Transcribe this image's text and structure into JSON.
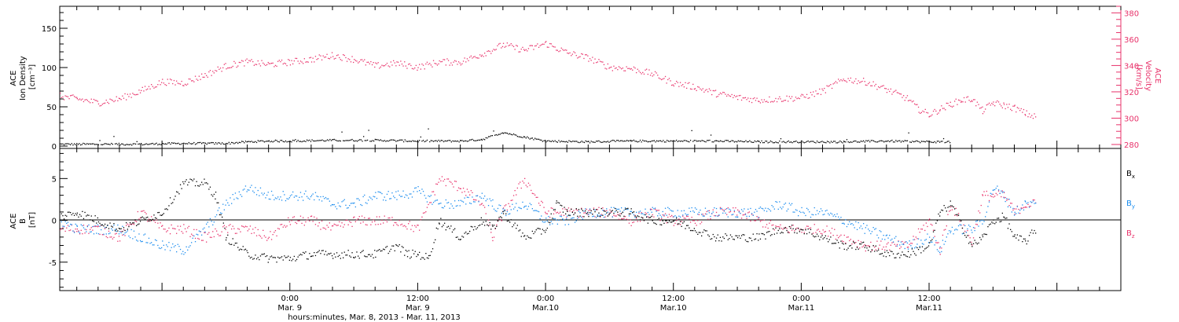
{
  "chart_data": [
    {
      "type": "scatter",
      "panel": "top",
      "left_axis": {
        "label_lines": [
          "ACE",
          "Ion Density",
          "[cm⁻³]"
        ],
        "range": [
          -3,
          178
        ],
        "ticks": [
          0,
          50,
          100,
          150
        ],
        "color": "#000000"
      },
      "right_axis": {
        "label_lines": [
          "ACE",
          "Velocity",
          "[km/s]"
        ],
        "range": [
          277,
          385
        ],
        "ticks": [
          280,
          300,
          320,
          340,
          360,
          380
        ],
        "color": "#e8336b"
      },
      "grid": false,
      "series": [
        {
          "name": "Ion Density",
          "axis": "left",
          "color": "#000000",
          "points": [
            [
              -21.6,
              3
            ],
            [
              -18,
              3
            ],
            [
              -14,
              3
            ],
            [
              -10,
              4
            ],
            [
              -6,
              4
            ],
            [
              -4,
              6
            ],
            [
              -2,
              7
            ],
            [
              0,
              7
            ],
            [
              4,
              8
            ],
            [
              8,
              8
            ],
            [
              12,
              7
            ],
            [
              16,
              7
            ],
            [
              18,
              9
            ],
            [
              20,
              18
            ],
            [
              22,
              12
            ],
            [
              24,
              7
            ],
            [
              28,
              6
            ],
            [
              32,
              7
            ],
            [
              36,
              7
            ],
            [
              40,
              7
            ],
            [
              44,
              6
            ],
            [
              48,
              6
            ],
            [
              52,
              6
            ],
            [
              56,
              7
            ],
            [
              60,
              6
            ],
            [
              62,
              6
            ]
          ]
        },
        {
          "name": "Velocity",
          "axis": "right",
          "color": "#e8336b",
          "points": [
            [
              -21.6,
              317
            ],
            [
              -20,
              315
            ],
            [
              -18,
              312
            ],
            [
              -16,
              315
            ],
            [
              -14,
              321
            ],
            [
              -12,
              328
            ],
            [
              -10,
              327
            ],
            [
              -8,
              333
            ],
            [
              -6,
              340
            ],
            [
              -4,
              343
            ],
            [
              -2,
              341
            ],
            [
              0,
              343
            ],
            [
              2,
              345
            ],
            [
              4,
              348
            ],
            [
              6,
              345
            ],
            [
              8,
              340
            ],
            [
              10,
              342
            ],
            [
              12,
              339
            ],
            [
              14,
              343
            ],
            [
              16,
              343
            ],
            [
              18,
              349
            ],
            [
              20,
              356
            ],
            [
              22,
              352
            ],
            [
              24,
              357
            ],
            [
              26,
              350
            ],
            [
              28,
              346
            ],
            [
              30,
              339
            ],
            [
              32,
              338
            ],
            [
              34,
              334
            ],
            [
              36,
              327
            ],
            [
              38,
              324
            ],
            [
              40,
              319
            ],
            [
              42,
              316
            ],
            [
              44,
              314
            ],
            [
              46,
              315
            ],
            [
              48,
              316
            ],
            [
              50,
              321
            ],
            [
              52,
              330
            ],
            [
              54,
              328
            ],
            [
              56,
              322
            ],
            [
              58,
              315
            ],
            [
              59,
              307
            ],
            [
              60,
              303
            ],
            [
              61,
              307
            ],
            [
              62,
              311
            ],
            [
              63,
              314
            ],
            [
              64,
              315
            ],
            [
              65,
              306
            ],
            [
              66,
              312
            ],
            [
              67,
              310
            ],
            [
              68,
              308
            ],
            [
              69,
              304
            ],
            [
              70,
              301
            ]
          ]
        }
      ]
    },
    {
      "type": "scatter",
      "panel": "bottom",
      "left_axis": {
        "label_lines": [
          "ACE",
          "B",
          "[nT]"
        ],
        "range": [
          -8.4,
          8.6
        ],
        "ticks": [
          -5,
          0,
          5
        ],
        "color": "#000000"
      },
      "zero_line": true,
      "grid": false,
      "legend_placement": "right",
      "series": [
        {
          "name": "B",
          "subscript": "x",
          "color": "#000000",
          "points": [
            [
              -21.6,
              0.5
            ],
            [
              -20,
              1
            ],
            [
              -18,
              0
            ],
            [
              -16,
              -1
            ],
            [
              -14,
              0
            ],
            [
              -12,
              1
            ],
            [
              -10,
              4.5
            ],
            [
              -8,
              4.5
            ],
            [
              -7,
              3
            ],
            [
              -6,
              -2
            ],
            [
              -4,
              -4
            ],
            [
              -2,
              -4.5
            ],
            [
              0,
              -4.5
            ],
            [
              2,
              -4
            ],
            [
              4,
              -4
            ],
            [
              6,
              -4
            ],
            [
              8,
              -4
            ],
            [
              10,
              -3
            ],
            [
              11,
              -4
            ],
            [
              12,
              -4
            ],
            [
              13,
              -4.5
            ],
            [
              14,
              0
            ],
            [
              16,
              -2
            ],
            [
              18,
              0
            ],
            [
              19,
              -1
            ],
            [
              20,
              1
            ],
            [
              22,
              -2
            ],
            [
              24,
              -1
            ],
            [
              25,
              2
            ],
            [
              26,
              1
            ],
            [
              28,
              1
            ],
            [
              30,
              1
            ],
            [
              32,
              1
            ],
            [
              34,
              0
            ],
            [
              36,
              0
            ],
            [
              38,
              -1
            ],
            [
              40,
              -2
            ],
            [
              42,
              -2
            ],
            [
              44,
              -2
            ],
            [
              46,
              -1
            ],
            [
              48,
              -1
            ],
            [
              50,
              -2
            ],
            [
              52,
              -3
            ],
            [
              54,
              -3
            ],
            [
              56,
              -4
            ],
            [
              58,
              -4
            ],
            [
              60,
              -3
            ],
            [
              61,
              1
            ],
            [
              62,
              2
            ],
            [
              64,
              -3
            ],
            [
              65,
              -2
            ],
            [
              66,
              0
            ],
            [
              67,
              0.5
            ],
            [
              68,
              -2
            ],
            [
              69,
              -2.5
            ],
            [
              70,
              -1
            ]
          ]
        },
        {
          "name": "B",
          "subscript": "y",
          "color": "#1a8cee",
          "points": [
            [
              -21.6,
              0
            ],
            [
              -20,
              -1
            ],
            [
              -18,
              -1
            ],
            [
              -16,
              -1
            ],
            [
              -14,
              -2
            ],
            [
              -12,
              -3
            ],
            [
              -10,
              -3.5
            ],
            [
              -8,
              -1
            ],
            [
              -6,
              2
            ],
            [
              -4,
              4
            ],
            [
              -2,
              3
            ],
            [
              0,
              3
            ],
            [
              2,
              3
            ],
            [
              4,
              2
            ],
            [
              6,
              2
            ],
            [
              8,
              3
            ],
            [
              10,
              3
            ],
            [
              12,
              3.5
            ],
            [
              14,
              2
            ],
            [
              16,
              2
            ],
            [
              18,
              3
            ],
            [
              19,
              2
            ],
            [
              20,
              1
            ],
            [
              22,
              2
            ],
            [
              24,
              0
            ],
            [
              26,
              0
            ],
            [
              28,
              1
            ],
            [
              30,
              1
            ],
            [
              32,
              1
            ],
            [
              34,
              1
            ],
            [
              36,
              1
            ],
            [
              38,
              1
            ],
            [
              40,
              1
            ],
            [
              42,
              1
            ],
            [
              44,
              1
            ],
            [
              46,
              2
            ],
            [
              48,
              1
            ],
            [
              50,
              1
            ],
            [
              52,
              0
            ],
            [
              54,
              -1
            ],
            [
              56,
              -2
            ],
            [
              58,
              -3
            ],
            [
              60,
              -2
            ],
            [
              61,
              -3.5
            ],
            [
              62,
              -1
            ],
            [
              64,
              -1
            ],
            [
              65,
              0
            ],
            [
              66,
              4
            ],
            [
              67,
              3
            ],
            [
              68,
              1
            ],
            [
              69,
              2
            ],
            [
              70,
              2
            ]
          ]
        },
        {
          "name": "B",
          "subscript": "z",
          "color": "#e8336b",
          "points": [
            [
              -21.6,
              -1
            ],
            [
              -20,
              -1
            ],
            [
              -18,
              -1
            ],
            [
              -16,
              -2
            ],
            [
              -14,
              1
            ],
            [
              -12,
              -1
            ],
            [
              -10,
              -1
            ],
            [
              -8,
              -2
            ],
            [
              -6,
              -1
            ],
            [
              -4,
              -1
            ],
            [
              -2,
              -2
            ],
            [
              0,
              0
            ],
            [
              2,
              0
            ],
            [
              4,
              -1
            ],
            [
              6,
              0
            ],
            [
              8,
              0
            ],
            [
              10,
              0
            ],
            [
              12,
              -1
            ],
            [
              14,
              5
            ],
            [
              16,
              4
            ],
            [
              18,
              2
            ],
            [
              19,
              -2
            ],
            [
              20,
              1
            ],
            [
              22,
              5
            ],
            [
              24,
              1
            ],
            [
              26,
              1
            ],
            [
              28,
              1
            ],
            [
              30,
              1
            ],
            [
              32,
              0
            ],
            [
              34,
              1
            ],
            [
              36,
              0
            ],
            [
              38,
              0
            ],
            [
              40,
              1
            ],
            [
              42,
              1
            ],
            [
              44,
              0
            ],
            [
              46,
              -1
            ],
            [
              48,
              -1
            ],
            [
              50,
              -1
            ],
            [
              52,
              -2
            ],
            [
              54,
              -3
            ],
            [
              56,
              -3
            ],
            [
              58,
              -3
            ],
            [
              60,
              0
            ],
            [
              61,
              -3.5
            ],
            [
              62,
              2
            ],
            [
              64,
              -2.5
            ],
            [
              65,
              3
            ],
            [
              66,
              3
            ],
            [
              67,
              3
            ],
            [
              68,
              1
            ],
            [
              69,
              2
            ],
            [
              70,
              2
            ]
          ]
        }
      ]
    }
  ],
  "x_axis": {
    "range": [
      -21.6,
      78
    ],
    "tick_hours": [
      0,
      12,
      24,
      36,
      48,
      60
    ],
    "tick_time_labels": [
      "0:00",
      "12:00",
      "0:00",
      "12:00",
      "0:00",
      "12:00"
    ],
    "tick_date_labels": [
      "Mar. 9",
      "Mar. 9",
      "Mar.10",
      "Mar.10",
      "Mar.11",
      "Mar.11"
    ],
    "minor_every_hours": 2,
    "title": "hours:minutes, Mar.  8, 2013 - Mar. 11, 2013"
  }
}
